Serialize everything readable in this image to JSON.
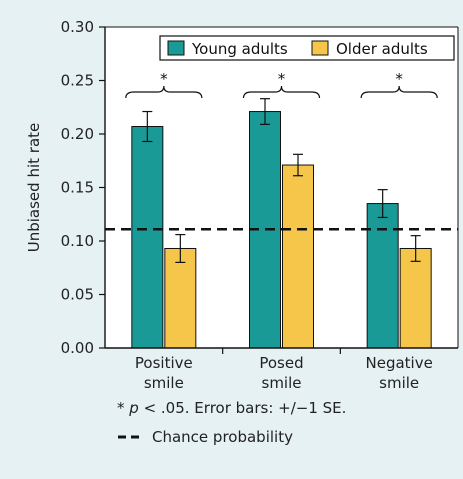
{
  "chart_data": {
    "type": "bar",
    "categories": [
      [
        "Positive",
        "smile"
      ],
      [
        "Posed",
        "smile"
      ],
      [
        "Negative",
        "smile"
      ]
    ],
    "series": [
      {
        "name": "Young adults",
        "color": "#1a9a96",
        "values": [
          0.207,
          0.221,
          0.135
        ],
        "se": [
          0.014,
          0.012,
          0.013
        ]
      },
      {
        "name": "Older adults",
        "color": "#f6c64a",
        "values": [
          0.093,
          0.171,
          0.093
        ],
        "se": [
          0.013,
          0.01,
          0.012
        ]
      }
    ],
    "ylabel": "Unbiased hit rate",
    "ylim": [
      0,
      0.3
    ],
    "yticks": [
      "0.00",
      "0.05",
      "0.10",
      "0.15",
      "0.20",
      "0.25",
      "0.30"
    ],
    "ytick_values": [
      0,
      0.05,
      0.1,
      0.15,
      0.2,
      0.25,
      0.3
    ],
    "chance_probability": 0.111,
    "significance_marks": [
      "*",
      "*",
      "*"
    ],
    "legend_position": "top-right"
  },
  "footnote": {
    "star": "*",
    "p": "p",
    "rest": " < .05. Error bars: +/−1 SE."
  },
  "chance_label": "Chance probability"
}
